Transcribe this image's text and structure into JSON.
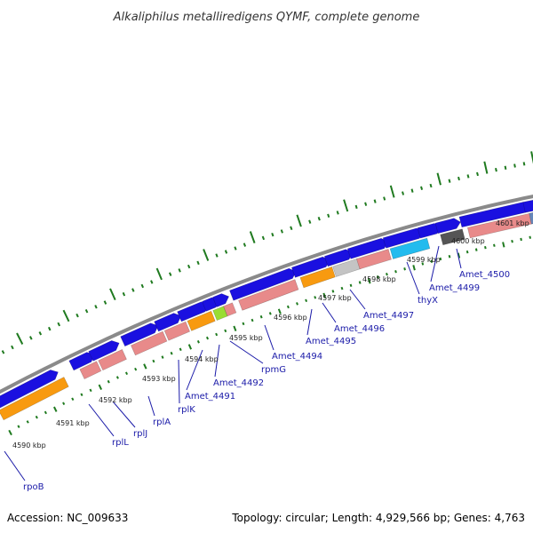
{
  "title": "Alkaliphilus metalliredigens QYMF, complete genome",
  "footer": {
    "accession": "Accession: NC_009633",
    "summary": "Topology: circular; Length: 4,929,566 bp; Genes: 4,763"
  },
  "colors": {
    "blue_gene": "#1a10e0",
    "pink_gene": "#e88a8a",
    "orange_gene": "#f89a10",
    "green_gene": "#99dd33",
    "light_gray_gene": "#c4c4c4",
    "dark_gray_gene": "#555555",
    "cyan_gene": "#22bbee",
    "steel_gene": "#6688bb",
    "backbone": "#8a8a8a",
    "tick": "#1f7a1f",
    "label": "#1a1aa8"
  },
  "kbp_labels": [
    "4590 kbp",
    "4591 kbp",
    "4592 kbp",
    "4593 kbp",
    "4594 kbp",
    "4595 kbp",
    "4596 kbp",
    "4597 kbp",
    "4598 kbp",
    "4599 kbp",
    "4600 kbp",
    "4601 kbp"
  ],
  "gene_labels": [
    "rpoB",
    "rplL",
    "rplJ",
    "rplA",
    "rplK",
    "Amet_4491",
    "Amet_4492",
    "rpmG",
    "Amet_4494",
    "Amet_4495",
    "Amet_4496",
    "Amet_4497",
    "thyX",
    "Amet_4499",
    "Amet_4500"
  ]
}
